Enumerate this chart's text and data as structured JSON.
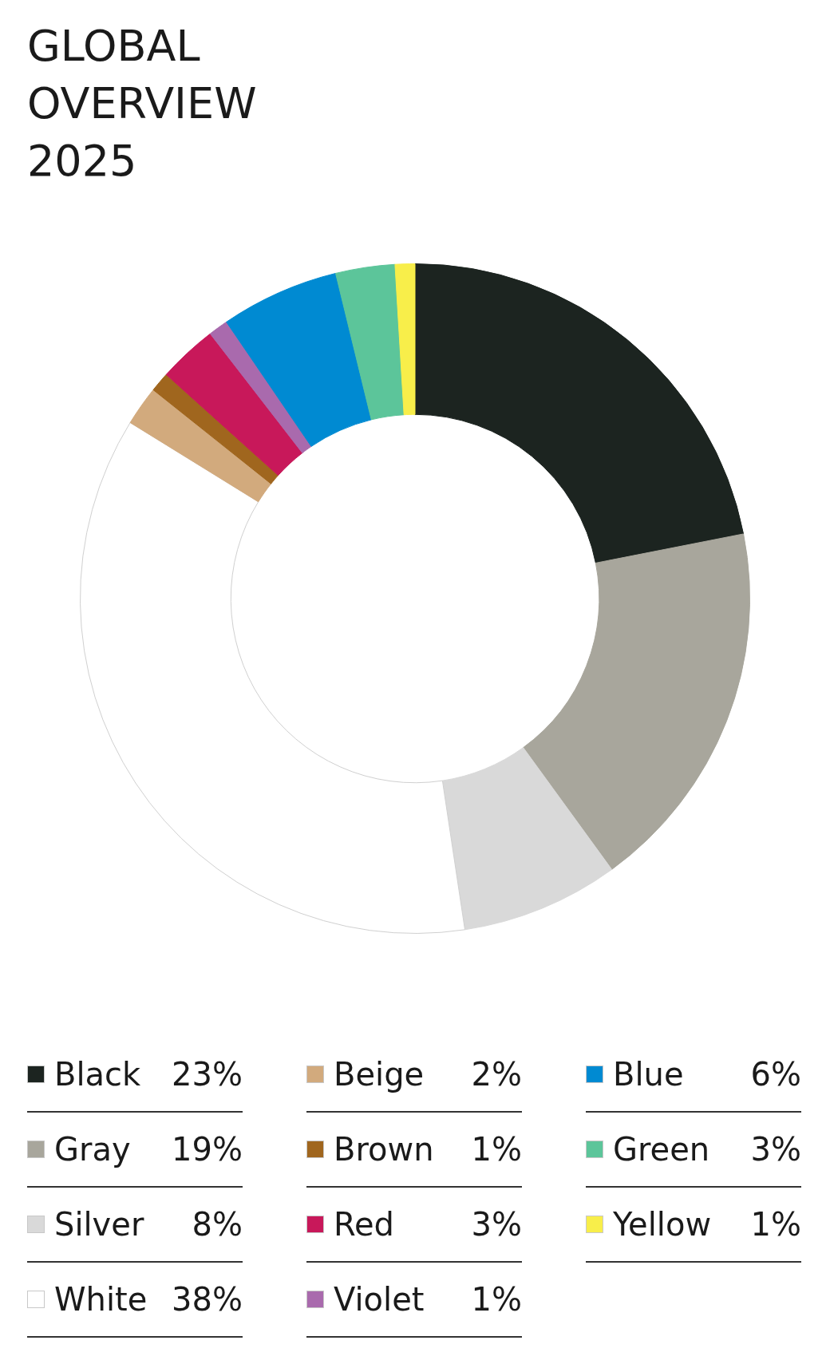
{
  "chart_data": {
    "type": "donut",
    "title": "GLOBAL OVERVIEW 2025",
    "categories": [
      "Black",
      "Gray",
      "Silver",
      "White",
      "Beige",
      "Brown",
      "Red",
      "Violet",
      "Blue",
      "Green",
      "Yellow"
    ],
    "values": [
      23,
      19,
      8,
      38,
      2,
      1,
      3,
      1,
      6,
      3,
      1
    ],
    "value_labels": [
      "23%",
      "19%",
      "8%",
      "38%",
      "2%",
      "1%",
      "3%",
      "1%",
      "6%",
      "3%",
      "1%"
    ],
    "colors": [
      "#1c2420",
      "#a8a69c",
      "#d9d9d9",
      "#ffffff",
      "#d2aa7d",
      "#a0661e",
      "#c8185a",
      "#a96aad",
      "#008ad2",
      "#5cc59a",
      "#f8ee4a"
    ],
    "legend": "bottom"
  }
}
